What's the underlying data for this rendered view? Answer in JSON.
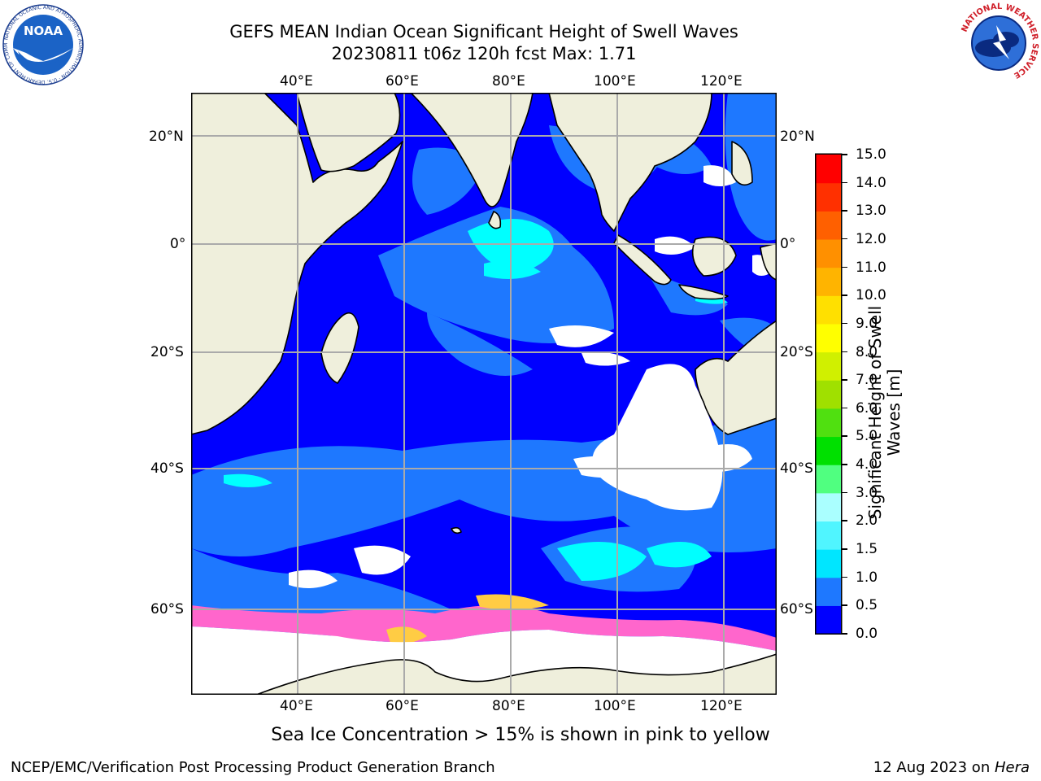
{
  "header": {
    "title_line1": "GEFS MEAN Indian Ocean Significant Height of Swell Waves",
    "title_line2": "20230811 t06z 120h fcst   Max: 1.71"
  },
  "logos": {
    "noaa_text": "NOAA",
    "noaa_ring": "NATIONAL OCEANIC AND ATMOSPHERIC ADMINISTRATION · U.S. DEPARTMENT OF COMMERCE",
    "nws_ring": "NATIONAL WEATHER SERVICE"
  },
  "map": {
    "lon_labels": [
      "40°E",
      "60°E",
      "80°E",
      "100°E",
      "120°E"
    ],
    "lat_labels": [
      "20°N",
      "0°",
      "20°S",
      "40°S",
      "60°S"
    ],
    "colors": {
      "land": "#efefdc",
      "ocean_low": "#0000ff",
      "ocean_mid": "#1e78ff",
      "ocean_high": "#00ffff",
      "grid": "#aaaaaa",
      "ice_pink": "#ff66cc",
      "ice_yellow": "#ffcc44"
    }
  },
  "colorbar": {
    "label": "Significant Height of Swell Waves [m]",
    "ticks": [
      "0.0",
      "0.5",
      "1.0",
      "1.5",
      "2.0",
      "3.0",
      "4.0",
      "5.0",
      "6.0",
      "7.0",
      "8.0",
      "9.0",
      "10.0",
      "11.0",
      "12.0",
      "13.0",
      "14.0",
      "15.0"
    ],
    "colors": [
      "#0000ff",
      "#1e78ff",
      "#00e6ff",
      "#50f5ff",
      "#aaffff",
      "#50ff80",
      "#00e000",
      "#50e010",
      "#a0e000",
      "#d0f000",
      "#ffff00",
      "#ffe000",
      "#ffb400",
      "#ff9000",
      "#ff6000",
      "#ff3000",
      "#ff0000"
    ]
  },
  "note": "Sea Ice Concentration > 15% is shown in pink to yellow",
  "footer": {
    "left": "NCEP/EMC/Verification Post Processing Product Generation Branch",
    "right_prefix": "12 Aug 2023 on ",
    "right_italic": "Hera"
  }
}
